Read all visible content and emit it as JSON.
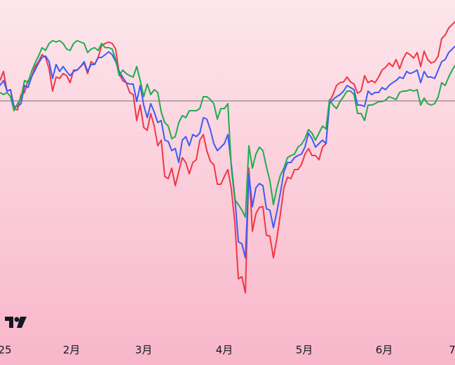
{
  "chart_data": {
    "type": "line",
    "x": [
      0,
      1,
      2,
      3,
      4,
      5,
      6,
      7,
      8,
      9,
      10,
      11,
      12,
      13,
      14,
      15,
      16,
      17,
      18,
      19,
      20,
      21,
      22,
      23,
      24,
      25,
      26,
      27,
      28,
      29,
      30,
      31,
      32,
      33,
      34,
      35,
      36,
      37,
      38,
      39,
      40,
      41,
      42,
      43,
      44,
      45,
      46,
      47,
      48,
      49,
      50,
      51,
      52,
      53,
      54,
      55,
      56,
      57,
      58,
      59,
      60,
      61,
      62,
      63,
      64,
      65,
      66,
      67,
      68,
      69,
      70,
      71,
      72,
      73,
      74,
      75,
      76,
      77,
      78,
      79,
      80,
      81,
      82,
      83,
      84,
      85,
      86,
      87,
      88,
      89,
      90,
      91,
      92,
      93,
      94,
      95,
      96,
      97,
      98,
      99,
      100,
      101,
      102,
      103,
      104,
      105,
      106,
      107,
      108,
      109,
      110,
      111,
      112,
      113,
      114,
      115,
      116,
      117,
      118,
      119,
      120,
      121,
      122,
      123,
      124,
      125,
      126,
      127,
      128,
      129,
      130
    ],
    "xlim": [
      0,
      130
    ],
    "xticks": [
      {
        "value": 1.4,
        "label": "25"
      },
      {
        "value": 20.4,
        "label": "2月"
      },
      {
        "value": 41,
        "label": "3月"
      },
      {
        "value": 64,
        "label": "4月"
      },
      {
        "value": 86.8,
        "label": "5月"
      },
      {
        "value": 109.6,
        "label": "6月"
      },
      {
        "value": 129,
        "label": "7"
      }
    ],
    "ylim": [
      -336,
      144
    ],
    "baseline": 0,
    "series": [
      {
        "color": "#f23645",
        "values": [
          29,
          42,
          14,
          16,
          -11,
          -13,
          9,
          12,
          29,
          34,
          49,
          56,
          66,
          62,
          46,
          14,
          34,
          32,
          39,
          36,
          26,
          44,
          44,
          49,
          54,
          39,
          56,
          52,
          62,
          79,
          82,
          84,
          82,
          74,
          39,
          29,
          26,
          12,
          9,
          -28,
          -6,
          -38,
          -42,
          -18,
          -36,
          -64,
          -56,
          -108,
          -111,
          -96,
          -121,
          -101,
          -81,
          -88,
          -104,
          -88,
          -84,
          -56,
          -48,
          -71,
          -86,
          -91,
          -119,
          -119,
          -108,
          -98,
          -126,
          -174,
          -254,
          -251,
          -274,
          -96,
          -186,
          -161,
          -152,
          -151,
          -192,
          -193,
          -224,
          -196,
          -161,
          -124,
          -109,
          -111,
          -98,
          -98,
          -91,
          -76,
          -68,
          -78,
          -78,
          -84,
          -66,
          -61,
          -1,
          9,
          22,
          26,
          27,
          34,
          27,
          24,
          11,
          14,
          36,
          26,
          29,
          26,
          34,
          44,
          48,
          54,
          49,
          59,
          46,
          60,
          69,
          66,
          61,
          69,
          49,
          71,
          59,
          54,
          56,
          64,
          89,
          94,
          104,
          109,
          114
        ]
      },
      {
        "color": "#3d5cf5",
        "values": [
          22,
          29,
          14,
          16,
          -8,
          -8,
          -4,
          22,
          19,
          34,
          44,
          54,
          62,
          64,
          56,
          32,
          52,
          42,
          49,
          42,
          36,
          42,
          44,
          49,
          56,
          42,
          52,
          52,
          62,
          62,
          66,
          70,
          66,
          56,
          42,
          34,
          26,
          24,
          24,
          -1,
          22,
          -6,
          -24,
          -4,
          -16,
          -31,
          -28,
          -56,
          -58,
          -71,
          -68,
          -88,
          -56,
          -51,
          -64,
          -48,
          -51,
          -46,
          -24,
          -26,
          -41,
          -61,
          -71,
          -66,
          -61,
          -48,
          -91,
          -138,
          -201,
          -204,
          -224,
          -104,
          -151,
          -124,
          -118,
          -121,
          -154,
          -156,
          -181,
          -158,
          -131,
          -101,
          -88,
          -88,
          -81,
          -78,
          -76,
          -66,
          -46,
          -54,
          -66,
          -61,
          -56,
          -61,
          -4,
          2,
          6,
          9,
          14,
          22,
          19,
          16,
          -6,
          -6,
          -8,
          14,
          9,
          12,
          12,
          19,
          16,
          22,
          26,
          29,
          34,
          32,
          42,
          39,
          41,
          44,
          26,
          42,
          34,
          34,
          32,
          44,
          56,
          59,
          69,
          74,
          79
        ]
      },
      {
        "color": "#22ab50",
        "values": [
          12,
          9,
          12,
          6,
          -14,
          -4,
          4,
          29,
          26,
          42,
          54,
          64,
          76,
          72,
          82,
          86,
          84,
          86,
          82,
          74,
          72,
          82,
          86,
          84,
          82,
          69,
          74,
          76,
          72,
          82,
          76,
          76,
          74,
          59,
          36,
          44,
          39,
          36,
          34,
          49,
          29,
          6,
          24,
          9,
          16,
          12,
          -16,
          -31,
          -36,
          -54,
          -51,
          -31,
          -21,
          -24,
          -14,
          -14,
          -14,
          -11,
          6,
          6,
          2,
          -4,
          -26,
          -11,
          -11,
          -4,
          -96,
          -141,
          -148,
          -156,
          -166,
          -64,
          -96,
          -76,
          -66,
          -71,
          -94,
          -114,
          -148,
          -124,
          -106,
          -96,
          -81,
          -78,
          -76,
          -66,
          -62,
          -54,
          -41,
          -46,
          -56,
          -46,
          -36,
          -40,
          2,
          -6,
          -11,
          -1,
          6,
          14,
          14,
          9,
          -18,
          -18,
          -28,
          -6,
          -6,
          -4,
          -1,
          -1,
          1,
          6,
          4,
          2,
          12,
          14,
          14,
          16,
          14,
          16,
          -6,
          4,
          -4,
          -6,
          -4,
          6,
          26,
          22,
          34,
          44,
          52
        ]
      }
    ]
  }
}
